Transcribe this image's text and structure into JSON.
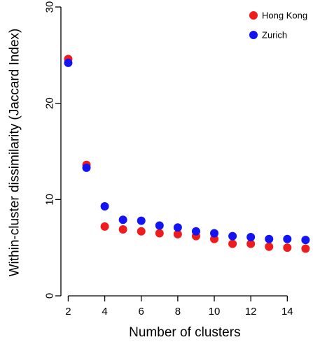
{
  "chart_data": {
    "type": "scatter",
    "title": "",
    "xlabel": "Number of clusters",
    "ylabel": "Within-cluster dissimilarity (Jaccard Index)",
    "xlim": [
      1.6,
      15.1
    ],
    "ylim": [
      0,
      30
    ],
    "xticks": [
      2,
      4,
      6,
      8,
      10,
      12,
      14
    ],
    "yticks": [
      0,
      10,
      20,
      30
    ],
    "grid": false,
    "legend_position": "top-right",
    "series": [
      {
        "name": "Hong Kong",
        "color": "#ee1c1c",
        "x": [
          2,
          3,
          4,
          5,
          6,
          7,
          8,
          9,
          10,
          11,
          12,
          13,
          14,
          15
        ],
        "y": [
          24.6,
          13.6,
          7.2,
          6.9,
          6.7,
          6.5,
          6.4,
          6.2,
          5.9,
          5.4,
          5.4,
          5.1,
          5.0,
          4.9
        ]
      },
      {
        "name": "Zurich",
        "color": "#1414f0",
        "x": [
          2,
          3,
          4,
          5,
          6,
          7,
          8,
          9,
          10,
          11,
          12,
          13,
          14,
          15
        ],
        "y": [
          24.2,
          13.3,
          9.3,
          7.9,
          7.8,
          7.3,
          7.1,
          6.7,
          6.5,
          6.2,
          6.1,
          5.9,
          5.9,
          5.8
        ]
      }
    ]
  }
}
